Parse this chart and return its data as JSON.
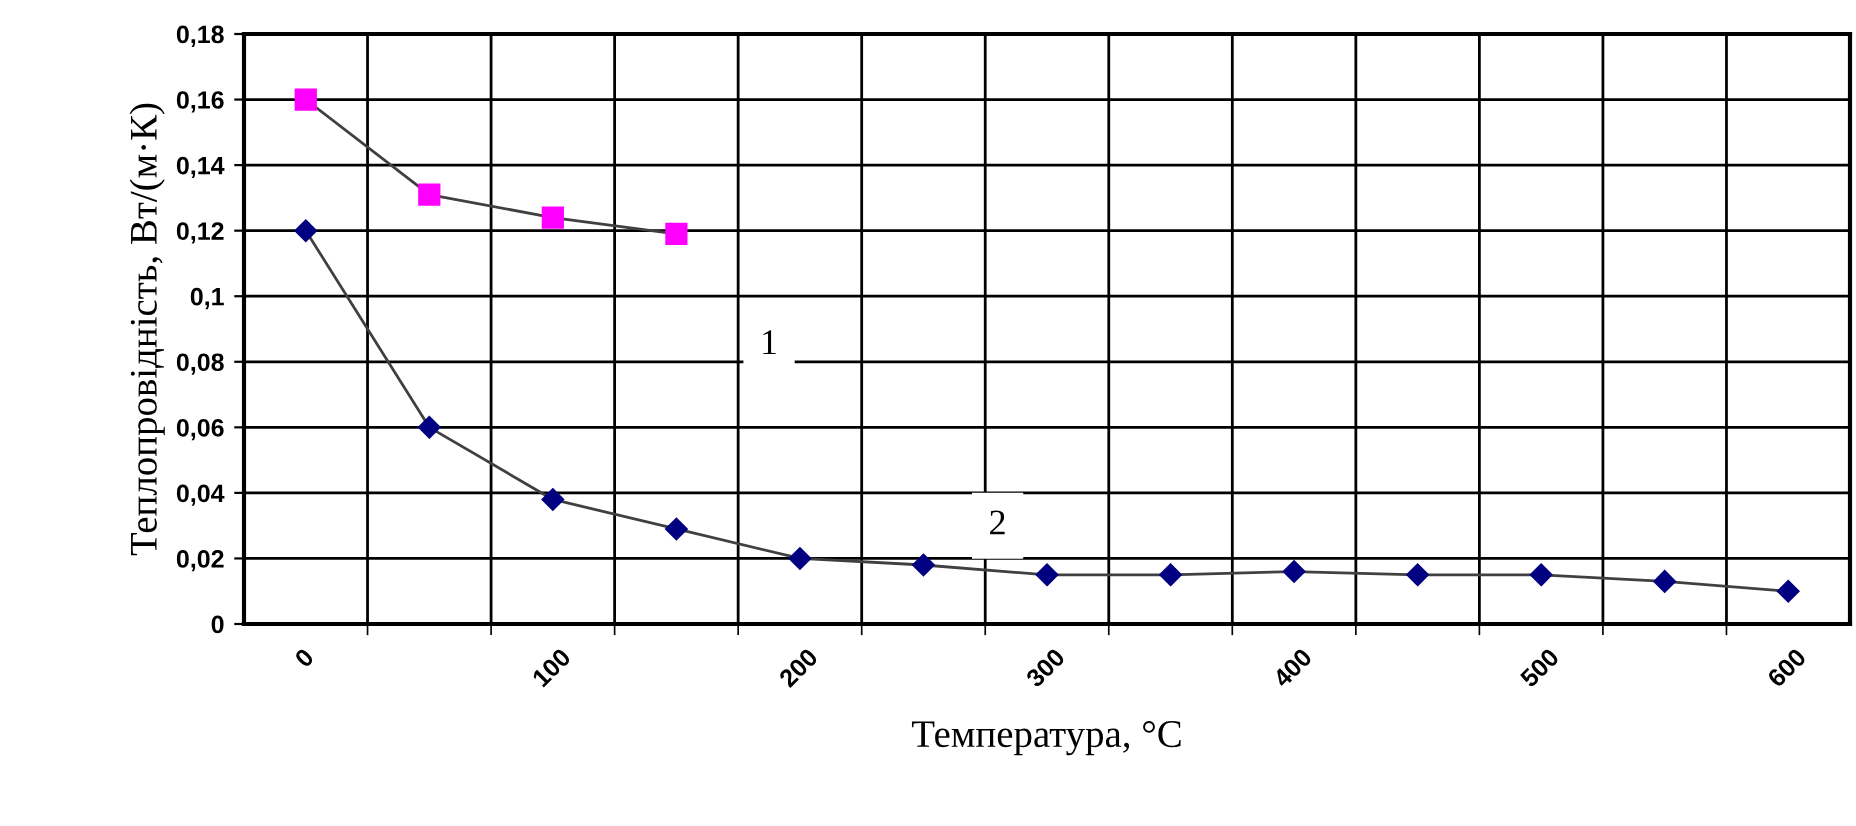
{
  "chart_data": {
    "type": "line",
    "xlabel": "Температура, °С",
    "ylabel": "Теплопровідність, Вт/(м·К)",
    "categories": [
      "0",
      null,
      "100",
      null,
      "200",
      null,
      "300",
      null,
      "400",
      null,
      "500",
      null,
      "600"
    ],
    "series": [
      {
        "color": "#ff00ff",
        "marker": "square",
        "values": [
          0.16,
          0.131,
          0.124,
          0.119,
          null,
          null,
          null,
          null,
          null,
          null,
          null,
          null,
          null
        ]
      },
      {
        "color": "#000080",
        "marker": "diamond",
        "values": [
          0.12,
          0.06,
          0.038,
          0.029,
          0.02,
          0.018,
          0.015,
          0.015,
          0.016,
          0.015,
          0.015,
          0.013,
          0.01
        ]
      }
    ],
    "annotations": [
      "1",
      "2"
    ],
    "ylim": [
      0,
      0.18
    ],
    "yticks": [
      {
        "value": 0,
        "label": "0"
      },
      {
        "value": 0.02,
        "label": "0,02"
      },
      {
        "value": 0.04,
        "label": "0,04"
      },
      {
        "value": 0.06,
        "label": "0,06"
      },
      {
        "value": 0.08,
        "label": "0,08"
      },
      {
        "value": 0.1,
        "label": "0,1"
      },
      {
        "value": 0.12,
        "label": "0,12"
      },
      {
        "value": 0.14,
        "label": "0,14"
      },
      {
        "value": 0.16,
        "label": "0,16"
      },
      {
        "value": 0.18,
        "label": "0,18"
      }
    ],
    "grid": true,
    "legend": false
  }
}
